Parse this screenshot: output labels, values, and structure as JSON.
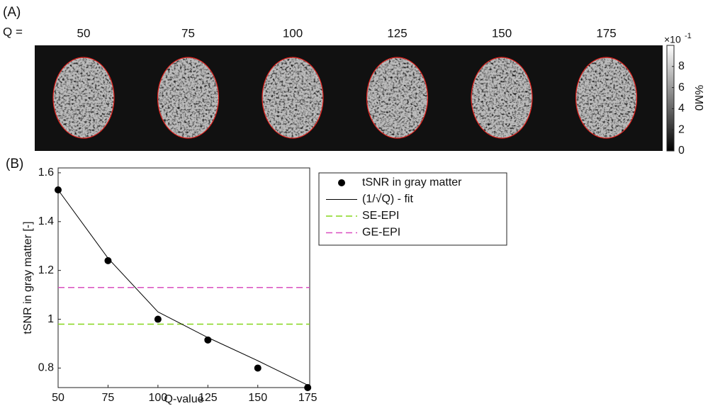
{
  "chart_data": [
    {
      "type": "image",
      "label": "(A)",
      "row_label": "Q =",
      "columns": [
        "50",
        "75",
        "100",
        "125",
        "150",
        "175"
      ],
      "colorbar": {
        "clim": [
          0,
          10
        ],
        "ticks": [
          0,
          2,
          4,
          6,
          8
        ],
        "multiplier": "×10",
        "exponent": "-1",
        "label": "%M0"
      }
    },
    {
      "type": "line",
      "label": "(B)",
      "xlabel": "Q-value",
      "ylabel": "tSNR in gray matter [-]",
      "x": [
        50,
        75,
        100,
        125,
        150,
        175
      ],
      "series": [
        {
          "name": "tSNR in gray matter",
          "color": "#000000",
          "marker": "circle",
          "values": [
            1.53,
            1.24,
            1.0,
            0.915,
            0.8,
            0.72
          ]
        },
        {
          "name": "(1/√Q) - fit",
          "color": "#000000",
          "marker": "none",
          "values": [
            1.53,
            1.25,
            1.03,
            0.925,
            0.83,
            0.73
          ]
        }
      ],
      "reference_lines": [
        {
          "name": "SE-EPI",
          "color": "#86d61c",
          "value": 0.98
        },
        {
          "name": "GE-EPI",
          "color": "#d94fbf",
          "value": 1.13
        }
      ],
      "xlim": [
        50,
        176
      ],
      "ylim": [
        0.72,
        1.62
      ],
      "xticks": [
        50,
        75,
        100,
        125,
        150,
        175
      ],
      "yticks": [
        0.8,
        1.0,
        1.2,
        1.4,
        1.6
      ]
    }
  ]
}
